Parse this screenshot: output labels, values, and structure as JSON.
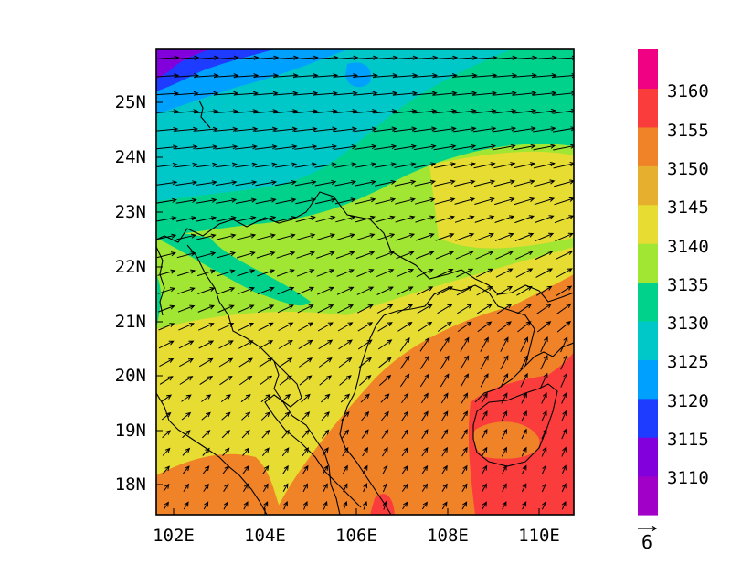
{
  "map": {
    "lat_ticks": [
      "25N",
      "24N",
      "23N",
      "22N",
      "21N",
      "20N",
      "19N",
      "18N"
    ],
    "lon_ticks": [
      "102E",
      "104E",
      "106E",
      "108E",
      "110E"
    ],
    "extent": {
      "lon_min": 101.7,
      "lon_max": 110.85,
      "lat_min": 17.4,
      "lat_max": 25.95
    }
  },
  "colorbar": {
    "levels": [
      "3110",
      "3115",
      "3120",
      "3125",
      "3130",
      "3135",
      "3140",
      "3145",
      "3150",
      "3155",
      "3160"
    ],
    "colors": [
      "#a000c8",
      "#8200dc",
      "#1e3cff",
      "#00a0ff",
      "#00c8c8",
      "#00d28c",
      "#a0e632",
      "#e6dc32",
      "#e6af2d",
      "#f08228",
      "#fa3c3c",
      "#f00082"
    ]
  },
  "vector_reference": {
    "value": "6"
  }
}
